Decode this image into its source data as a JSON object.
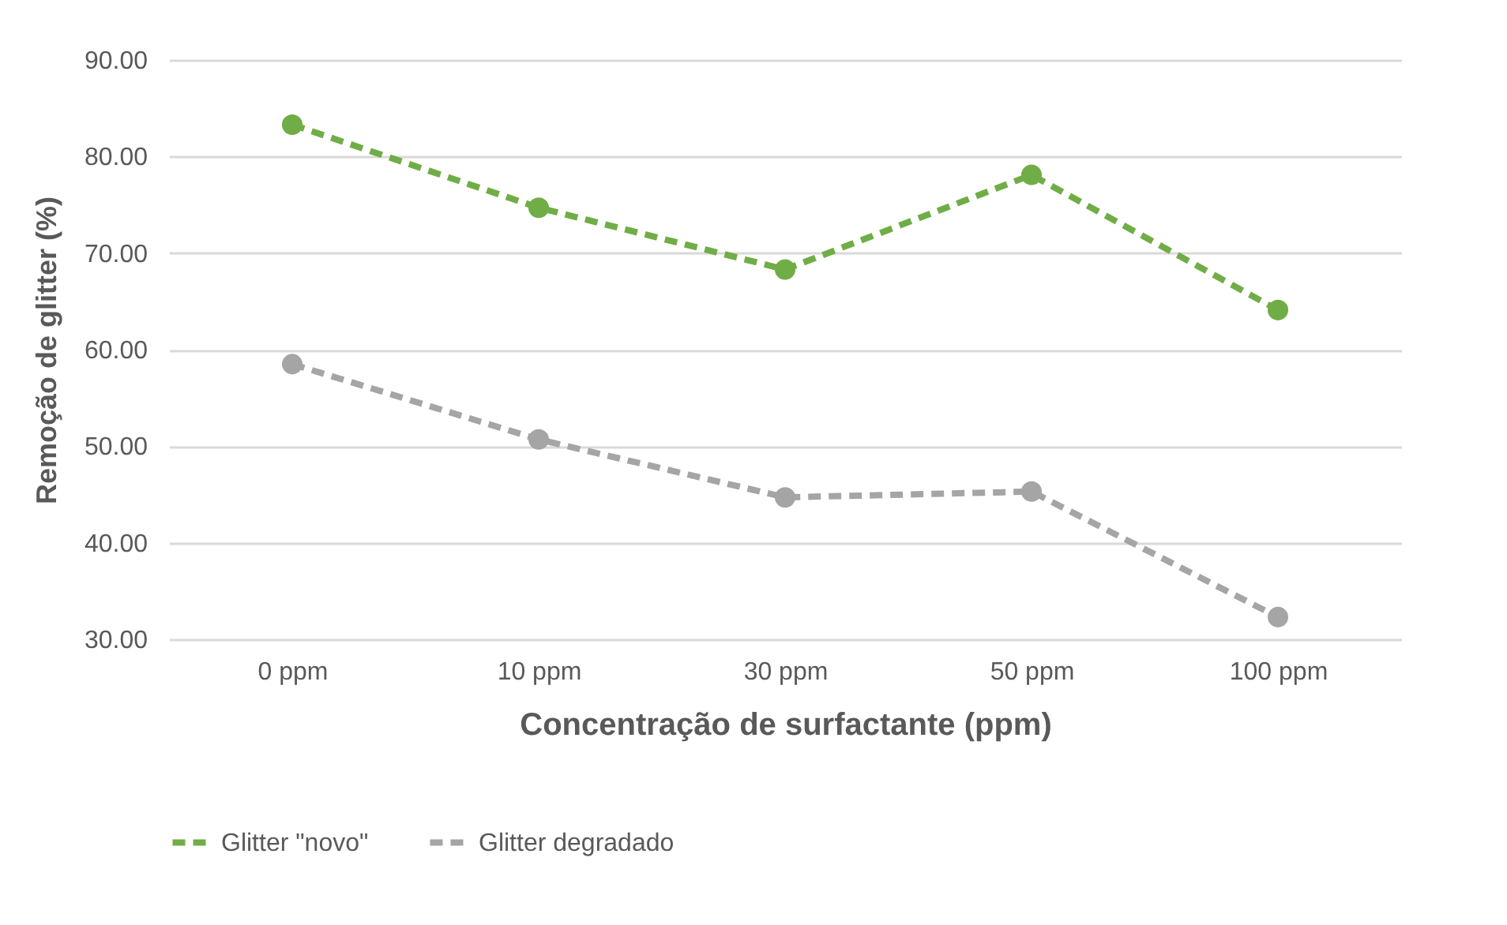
{
  "chart_data": {
    "type": "line",
    "xlabel": "Concentração de surfactante (ppm)",
    "ylabel": "Remoção de glitter (%)",
    "categories": [
      "0 ppm",
      "10 ppm",
      "30 ppm",
      "50 ppm",
      "100 ppm"
    ],
    "series": [
      {
        "name": "Glitter \"novo\"",
        "color": "#70ad47",
        "values": [
          83.3,
          74.7,
          68.3,
          78.1,
          64.1
        ]
      },
      {
        "name": "Glitter degradado",
        "color": "#a5a5a5",
        "values": [
          58.5,
          50.7,
          44.7,
          45.3,
          32.3
        ]
      }
    ],
    "ylim": [
      30,
      90
    ],
    "yticks": [
      {
        "value": 30,
        "label": "30.00"
      },
      {
        "value": 40,
        "label": "40.00"
      },
      {
        "value": 50,
        "label": "50.00"
      },
      {
        "value": 60,
        "label": "60.00"
      },
      {
        "value": 70,
        "label": "70.00"
      },
      {
        "value": 80,
        "label": "80.00"
      },
      {
        "value": 90,
        "label": "90.00"
      }
    ],
    "grid": "y",
    "legend": "bottom",
    "marker": "circle",
    "line_style": "dashed"
  }
}
